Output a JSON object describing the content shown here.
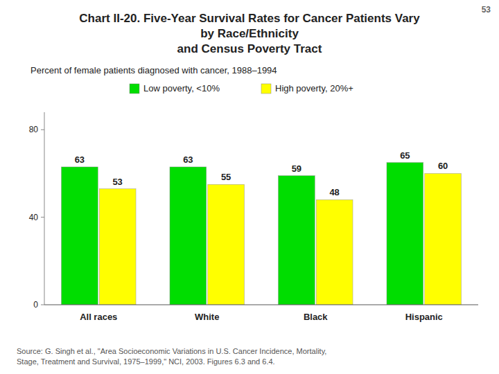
{
  "chart_data": {
    "type": "bar",
    "title": "Chart II-20. Five-Year Survival Rates for Cancer Patients Vary\nby Race/Ethnicity\nand Census Poverty Tract",
    "subtitle": "Percent of female patients diagnosed with cancer, 1988–1994",
    "page_number": "53",
    "source": "Source: G. Singh et al., \"Area Socioeconomic Variations in U.S. Cancer Incidence, Mortality,\nStage, Treatment and Survival, 1975–1999,\" NCI, 2003. Figures 6.3 and 6.4.",
    "categories": [
      "All races",
      "White",
      "Black",
      "Hispanic"
    ],
    "series": [
      {
        "name": "Low poverty, <10%",
        "color": "#00dd00",
        "values": [
          63,
          63,
          59,
          65
        ]
      },
      {
        "name": "High poverty, 20%+",
        "color": "#ffff00",
        "values": [
          53,
          55,
          48,
          60
        ]
      }
    ],
    "ylim": [
      0,
      88
    ],
    "yticks": [
      0,
      40,
      80
    ],
    "grid": false,
    "legend": "top",
    "data_labels": true
  }
}
